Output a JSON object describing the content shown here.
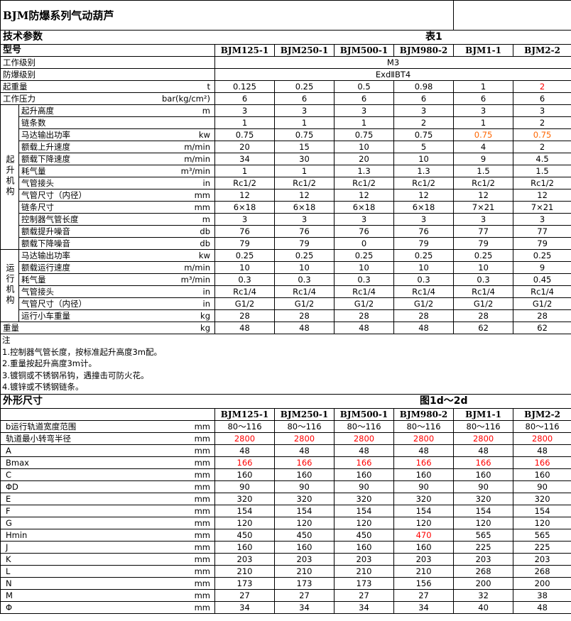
{
  "title": "BJM防爆系列气动葫芦",
  "colors": {
    "red": "#ff0000",
    "orange": "#ff6600"
  },
  "tech": {
    "section_label": "技术参数",
    "table_label": "表1",
    "model_label": "型号",
    "models": [
      "BJM125-1",
      "BJM250-1",
      "BJM500-1",
      "BJM980-2",
      "BJM1-1",
      "BJM2-2"
    ],
    "work_class": {
      "label": "工作级别",
      "value": "M3"
    },
    "explosion_class": {
      "label": "防爆级别",
      "value": "ExdⅡBT4"
    },
    "top_rows": [
      {
        "label": "起重量",
        "unit": "t",
        "values": [
          "0.125",
          "0.25",
          "0.5",
          "0.98",
          "1",
          "2"
        ],
        "colors": [
          null,
          null,
          null,
          null,
          null,
          "red"
        ]
      },
      {
        "label": "工作压力",
        "unit": "bar(kg/cm²)",
        "values": [
          "6",
          "6",
          "6",
          "6",
          "6",
          "6"
        ]
      }
    ],
    "groups": [
      {
        "label": "起升机构",
        "chars": [
          "起",
          "升",
          "机",
          "构"
        ],
        "rows": [
          {
            "label": "起升高度",
            "unit": "m",
            "values": [
              "3",
              "3",
              "3",
              "3",
              "3",
              "3"
            ]
          },
          {
            "label": "链条数",
            "unit": "",
            "values": [
              "1",
              "1",
              "1",
              "2",
              "1",
              "2"
            ]
          },
          {
            "label": "马达输出功率",
            "unit": "kw",
            "values": [
              "0.75",
              "0.75",
              "0.75",
              "0.75",
              "0.75",
              "0.75"
            ],
            "colors": [
              null,
              null,
              null,
              null,
              "orange",
              "orange"
            ]
          },
          {
            "label": "额载上升速度",
            "unit": "m/min",
            "values": [
              "20",
              "15",
              "10",
              "5",
              "4",
              "2"
            ]
          },
          {
            "label": "额载下降速度",
            "unit": "m/min",
            "values": [
              "34",
              "30",
              "20",
              "10",
              "9",
              "4.5"
            ]
          },
          {
            "label": "耗气量",
            "unit": "m³/min",
            "values": [
              "1",
              "1",
              "1.3",
              "1.3",
              "1.5",
              "1.5"
            ]
          },
          {
            "label": "气管接头",
            "unit": "in",
            "values": [
              "Rc1/2",
              "Rc1/2",
              "Rc1/2",
              "Rc1/2",
              "Rc1/2",
              "Rc1/2"
            ]
          },
          {
            "label": "气管尺寸（内径）",
            "unit": "mm",
            "values": [
              "12",
              "12",
              "12",
              "12",
              "12",
              "12"
            ]
          },
          {
            "label": "链条尺寸",
            "unit": "mm",
            "values": [
              "6×18",
              "6×18",
              "6×18",
              "6×18",
              "7×21",
              "7×21"
            ]
          },
          {
            "label": "控制器气管长度",
            "unit": "m",
            "values": [
              "3",
              "3",
              "3",
              "3",
              "3",
              "3"
            ]
          },
          {
            "label": "额载提升噪音",
            "unit": "db",
            "values": [
              "76",
              "76",
              "76",
              "76",
              "77",
              "77"
            ]
          },
          {
            "label": "额载下降噪音",
            "unit": "db",
            "values": [
              "79",
              "79",
              "0",
              "79",
              "79",
              "79"
            ]
          }
        ]
      },
      {
        "label": "运行机构",
        "chars": [
          "运",
          "行",
          "机",
          "构"
        ],
        "rows": [
          {
            "label": "马达输出功率",
            "unit": "kw",
            "values": [
              "0.25",
              "0.25",
              "0.25",
              "0.25",
              "0.25",
              "0.25"
            ]
          },
          {
            "label": "额载运行速度",
            "unit": "m/min",
            "values": [
              "10",
              "10",
              "10",
              "10",
              "10",
              "9"
            ]
          },
          {
            "label": "耗气量",
            "unit": "m³/min",
            "values": [
              "0.3",
              "0.3",
              "0.3",
              "0.3",
              "0.3",
              "0.45"
            ]
          },
          {
            "label": "气管接头",
            "unit": "in",
            "values": [
              "Rc1/4",
              "Rc1/4",
              "Rc1/4",
              "Rc1/4",
              "Rc1/4",
              "Rc1/4"
            ]
          },
          {
            "label": "气管尺寸（内径）",
            "unit": "in",
            "values": [
              "G1/2",
              "G1/2",
              "G1/2",
              "G1/2",
              "G1/2",
              "G1/2"
            ]
          },
          {
            "label": "运行小车重量",
            "unit": "kg",
            "values": [
              "28",
              "28",
              "28",
              "28",
              "28",
              "28"
            ]
          }
        ]
      }
    ],
    "weight": {
      "label": "重量",
      "unit": "kg",
      "values": [
        "48",
        "48",
        "48",
        "48",
        "62",
        "62"
      ]
    },
    "notes": [
      "注",
      "1.控制器气管长度，按标准起升高度3m配。",
      "2.重量按起升高度3m计。",
      "3.镀铜或不锈钢吊钩，遇撞击可防火花。",
      "4.镀锌或不锈钢链条。"
    ]
  },
  "dims": {
    "section_label": "外形尺寸",
    "figure_label": "图1d～2d",
    "models": [
      "BJM125-1",
      "BJM250-1",
      "BJM500-1",
      "BJM980-2",
      "BJM1-1",
      "BJM2-2"
    ],
    "rows": [
      {
        "label": "b运行轨道宽度范围",
        "unit": "mm",
        "values": [
          "80～116",
          "80～116",
          "80～116",
          "80～116",
          "80～116",
          "80～116"
        ]
      },
      {
        "label": "轨道最小转弯半径",
        "unit": "mm",
        "values": [
          "2800",
          "2800",
          "2800",
          "2800",
          "2800",
          "2800"
        ],
        "colors": [
          "red",
          "red",
          "red",
          "red",
          "red",
          "red"
        ]
      },
      {
        "label": "A",
        "unit": "mm",
        "values": [
          "48",
          "48",
          "48",
          "48",
          "48",
          "48"
        ]
      },
      {
        "label": "Bmax",
        "unit": "mm",
        "values": [
          "166",
          "166",
          "166",
          "166",
          "166",
          "166"
        ],
        "colors": [
          "red",
          "red",
          "red",
          "red",
          "red",
          "red"
        ]
      },
      {
        "label": "C",
        "unit": "mm",
        "values": [
          "160",
          "160",
          "160",
          "160",
          "160",
          "160"
        ]
      },
      {
        "label": "ΦD",
        "unit": "mm",
        "values": [
          "90",
          "90",
          "90",
          "90",
          "90",
          "90"
        ]
      },
      {
        "label": "E",
        "unit": "mm",
        "values": [
          "320",
          "320",
          "320",
          "320",
          "320",
          "320"
        ]
      },
      {
        "label": "F",
        "unit": "mm",
        "values": [
          "154",
          "154",
          "154",
          "154",
          "154",
          "154"
        ]
      },
      {
        "label": "G",
        "unit": "mm",
        "values": [
          "120",
          "120",
          "120",
          "120",
          "120",
          "120"
        ]
      },
      {
        "label": "Hmin",
        "unit": "mm",
        "values": [
          "450",
          "450",
          "450",
          "470",
          "565",
          "565"
        ],
        "colors": [
          null,
          null,
          null,
          "red",
          null,
          null
        ]
      },
      {
        "label": "J",
        "unit": "mm",
        "values": [
          "160",
          "160",
          "160",
          "160",
          "225",
          "225"
        ]
      },
      {
        "label": "K",
        "unit": "mm",
        "values": [
          "203",
          "203",
          "203",
          "203",
          "203",
          "203"
        ]
      },
      {
        "label": "L",
        "unit": "mm",
        "values": [
          "210",
          "210",
          "210",
          "210",
          "268",
          "268"
        ]
      },
      {
        "label": "N",
        "unit": "mm",
        "values": [
          "173",
          "173",
          "173",
          "156",
          "200",
          "200"
        ]
      },
      {
        "label": "M",
        "unit": "mm",
        "values": [
          "27",
          "27",
          "27",
          "27",
          "32",
          "38"
        ]
      },
      {
        "label": "Φ",
        "unit": "mm",
        "values": [
          "34",
          "34",
          "34",
          "34",
          "40",
          "48"
        ]
      }
    ]
  }
}
